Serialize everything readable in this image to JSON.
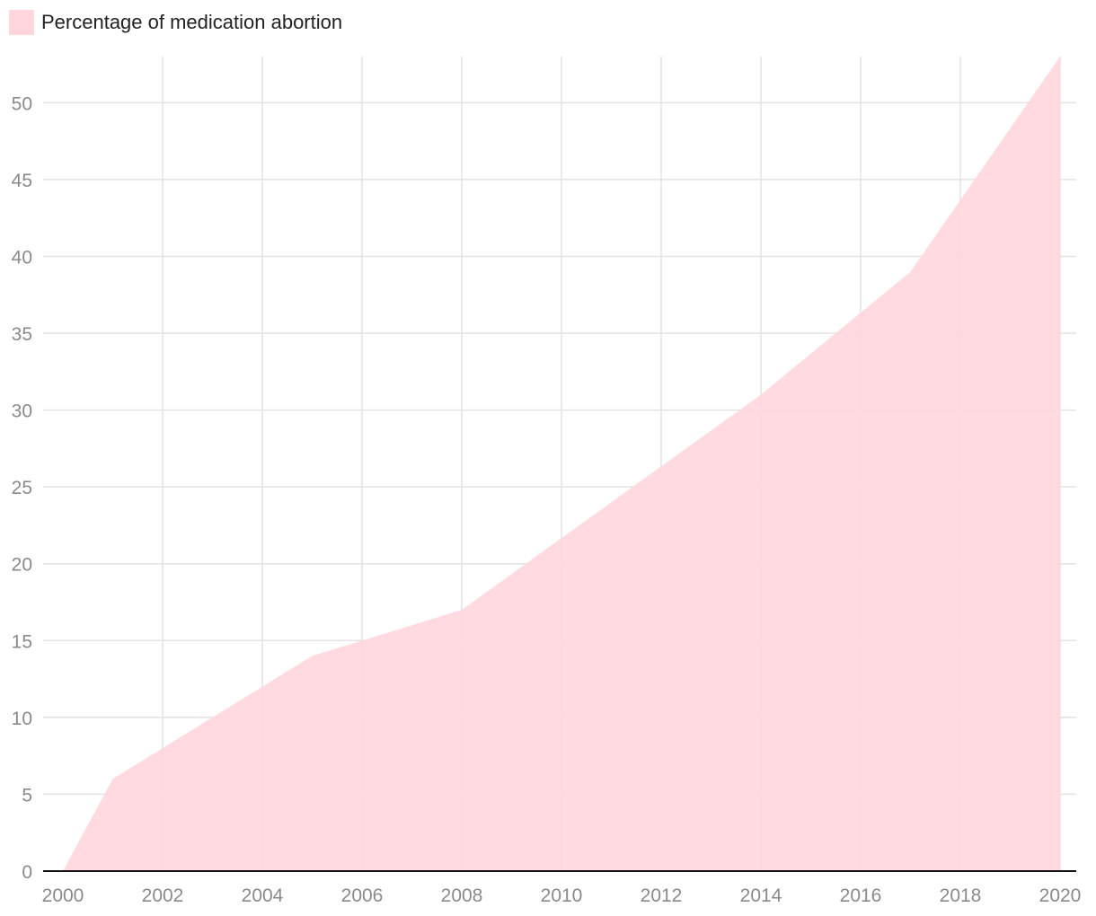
{
  "chart_data": {
    "type": "area",
    "title": "",
    "xlabel": "",
    "ylabel": "",
    "legend": {
      "position": "top-left"
    },
    "grid": true,
    "xlim": [
      2000,
      2020
    ],
    "ylim": [
      0,
      53
    ],
    "x_ticks": [
      "2000",
      "2002",
      "2004",
      "2006",
      "2008",
      "2010",
      "2012",
      "2014",
      "2016",
      "2018",
      "2020"
    ],
    "y_ticks": [
      "0",
      "5",
      "10",
      "15",
      "20",
      "25",
      "30",
      "35",
      "40",
      "45",
      "50"
    ],
    "series": [
      {
        "name": "Percentage of medication abortion",
        "color": "#ffd6dd",
        "x": [
          2000,
          2001,
          2005,
          2008,
          2014,
          2017,
          2020
        ],
        "values": [
          0,
          6,
          14,
          17,
          31,
          39,
          53
        ]
      }
    ]
  }
}
